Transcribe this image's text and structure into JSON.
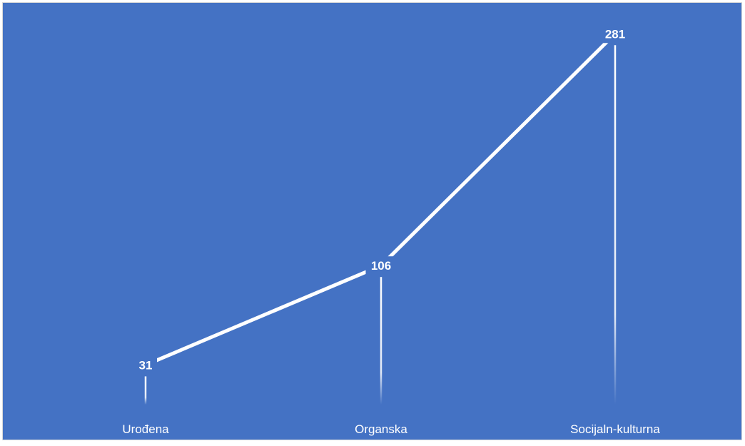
{
  "chart_data": {
    "type": "line",
    "categories": [
      "Urođena",
      "Organska",
      "Socijaln-kulturna"
    ],
    "values": [
      31,
      106,
      281
    ],
    "ylim": [
      0,
      300
    ],
    "grid": false,
    "legend": "none",
    "colors": {
      "background": "#4472C4",
      "line": "#ffffff",
      "text": "#ffffff"
    }
  }
}
